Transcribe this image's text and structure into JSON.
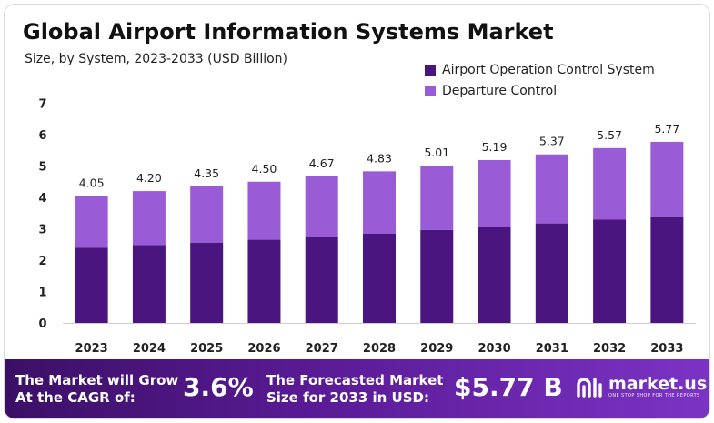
{
  "header": {
    "title": "Global Airport Information Systems Market",
    "subtitle": "Size, by System, 2023-2033 (USD Billion)"
  },
  "legend": [
    {
      "label": "Airport Operation Control System",
      "color": "#4b1580"
    },
    {
      "label": "Departure Control",
      "color": "#9a5bd6"
    }
  ],
  "chart_data": {
    "type": "bar",
    "stacked": true,
    "categories": [
      "2023",
      "2024",
      "2025",
      "2026",
      "2027",
      "2028",
      "2029",
      "2030",
      "2031",
      "2032",
      "2033"
    ],
    "series": [
      {
        "name": "Airport Operation Control System",
        "values": [
          2.4,
          2.48,
          2.56,
          2.65,
          2.75,
          2.85,
          2.96,
          3.07,
          3.17,
          3.29,
          3.4
        ]
      },
      {
        "name": "Departure Control",
        "values": [
          1.65,
          1.72,
          1.79,
          1.85,
          1.92,
          1.98,
          2.05,
          2.12,
          2.2,
          2.28,
          2.37
        ]
      }
    ],
    "totals": [
      "4.05",
      "4.20",
      "4.35",
      "4.50",
      "4.67",
      "4.83",
      "5.01",
      "5.19",
      "5.37",
      "5.57",
      "5.77"
    ],
    "y_ticks": [
      "0",
      "1",
      "2",
      "3",
      "4",
      "5",
      "6",
      "7"
    ],
    "ylim": [
      0,
      7
    ],
    "grid": false,
    "legend_position": "top-right"
  },
  "footer": {
    "cagr_label_line1": "The Market will Grow",
    "cagr_label_line2": "At the CAGR of:",
    "cagr_value": "3.6%",
    "forecast_label_line1": "The Forecasted Market",
    "forecast_label_line2": "Size for 2033 in USD:",
    "forecast_value": "$5.77 B",
    "brand_name": "market.us",
    "brand_tagline": "ONE STOP SHOP FOR THE REPORTS"
  }
}
